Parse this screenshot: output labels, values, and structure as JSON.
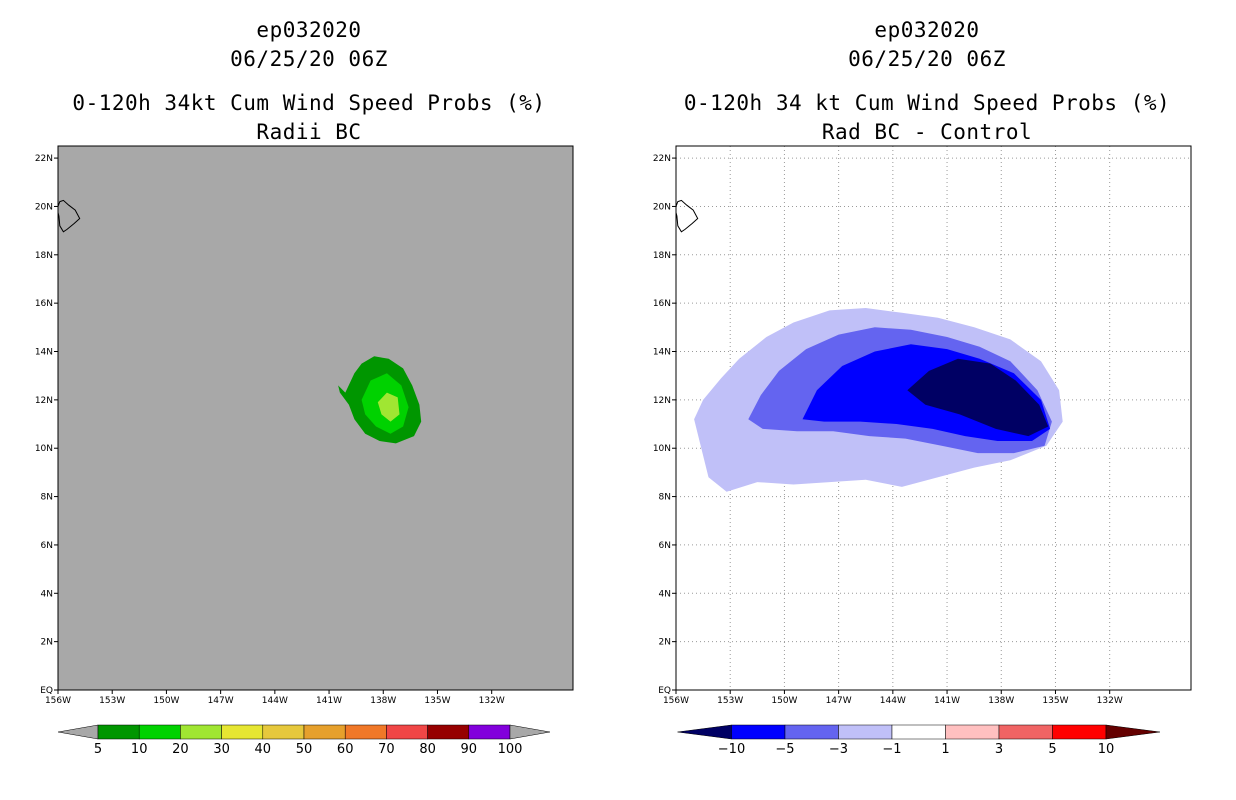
{
  "chart_data": [
    {
      "type": "heatmap",
      "storm_id": "ep032020",
      "datetime": "06/25/20 06Z",
      "title": "0-120h 34kt Cum Wind Speed Probs (%)",
      "subtitle": "Radii BC",
      "x_ticks": [
        "156W",
        "153W",
        "150W",
        "147W",
        "144W",
        "141W",
        "138W",
        "135W",
        "132W"
      ],
      "y_ticks": [
        "EQ",
        "2N",
        "4N",
        "6N",
        "8N",
        "10N",
        "12N",
        "14N",
        "16N",
        "18N",
        "20N",
        "22N"
      ],
      "xlim": [
        -156,
        -127.5
      ],
      "ylim": [
        0,
        22.5
      ],
      "grid": false,
      "background_color": "#a8a8a8",
      "levels": [
        5,
        10,
        20,
        30,
        40,
        50,
        60,
        70,
        80,
        90,
        100
      ],
      "colorbar_labels": [
        "5",
        "10",
        "20",
        "30",
        "40",
        "50",
        "60",
        "70",
        "80",
        "90",
        "100"
      ],
      "colors": [
        "#a8a8a8",
        "#009600",
        "#00d200",
        "#a0e632",
        "#e6e632",
        "#e6c83c",
        "#e6a02c",
        "#f07828",
        "#f04646",
        "#960000",
        "#8200dc",
        "#a8a8a8"
      ],
      "contours": [
        {
          "level": 5,
          "color": "#009600",
          "points": [
            [
              -140.5,
              12.6
            ],
            [
              -140.1,
              12.3
            ],
            [
              -139.6,
              13.1
            ],
            [
              -139.2,
              13.5
            ],
            [
              -138.5,
              13.8
            ],
            [
              -137.7,
              13.7
            ],
            [
              -136.9,
              13.3
            ],
            [
              -136.4,
              12.6
            ],
            [
              -136.0,
              11.8
            ],
            [
              -135.9,
              11.1
            ],
            [
              -136.3,
              10.5
            ],
            [
              -137.3,
              10.2
            ],
            [
              -138.2,
              10.3
            ],
            [
              -139.0,
              10.6
            ],
            [
              -139.6,
              11.2
            ],
            [
              -139.9,
              11.8
            ],
            [
              -140.4,
              12.3
            ]
          ]
        },
        {
          "level": 10,
          "color": "#00d200",
          "points": [
            [
              -139.2,
              12.0
            ],
            [
              -138.7,
              12.8
            ],
            [
              -137.8,
              13.1
            ],
            [
              -137.0,
              12.6
            ],
            [
              -136.6,
              11.7
            ],
            [
              -136.9,
              10.9
            ],
            [
              -137.6,
              10.6
            ],
            [
              -138.4,
              10.9
            ],
            [
              -139.0,
              11.4
            ]
          ]
        },
        {
          "level": 20,
          "color": "#a0e632",
          "points": [
            [
              -138.3,
              11.9
            ],
            [
              -137.8,
              12.3
            ],
            [
              -137.2,
              12.1
            ],
            [
              -137.1,
              11.4
            ],
            [
              -137.6,
              11.1
            ],
            [
              -138.1,
              11.4
            ]
          ]
        }
      ],
      "land_outline": "Hawaii (Big Island)",
      "colorbar_end_arrows": "#a8a8a8"
    },
    {
      "type": "heatmap",
      "storm_id": "ep032020",
      "datetime": "06/25/20 06Z",
      "title": "0-120h 34 kt Cum Wind Speed Probs (%)",
      "subtitle": "Rad BC - Control",
      "x_ticks": [
        "156W",
        "153W",
        "150W",
        "147W",
        "144W",
        "141W",
        "138W",
        "135W",
        "132W"
      ],
      "y_ticks": [
        "EQ",
        "2N",
        "4N",
        "6N",
        "8N",
        "10N",
        "12N",
        "14N",
        "16N",
        "18N",
        "20N",
        "22N"
      ],
      "xlim": [
        -156,
        -127.5
      ],
      "ylim": [
        0,
        22.5
      ],
      "grid": true,
      "background_color": "#ffffff",
      "levels": [
        -10,
        -5,
        -3,
        -1,
        1,
        3,
        5,
        10
      ],
      "colorbar_labels": [
        "-10",
        "-5",
        "-3",
        "-1",
        "1",
        "3",
        "5",
        "10"
      ],
      "colors": [
        "#000064",
        "#0000ff",
        "#6464f0",
        "#c0c0f8",
        "#ffffff",
        "#ffc0c0",
        "#f06464",
        "#ff0000",
        "#640000"
      ],
      "contours": [
        {
          "level": -1,
          "color": "#c0c0f8",
          "points": [
            [
              -155,
              11.2
            ],
            [
              -154.5,
              12.0
            ],
            [
              -153.5,
              12.9
            ],
            [
              -152.5,
              13.7
            ],
            [
              -151.0,
              14.6
            ],
            [
              -149.5,
              15.2
            ],
            [
              -147.5,
              15.7
            ],
            [
              -145.5,
              15.8
            ],
            [
              -143.5,
              15.6
            ],
            [
              -141.5,
              15.4
            ],
            [
              -139.5,
              15.0
            ],
            [
              -137.5,
              14.5
            ],
            [
              -135.8,
              13.6
            ],
            [
              -134.8,
              12.4
            ],
            [
              -134.6,
              11.1
            ],
            [
              -135.5,
              10.1
            ],
            [
              -137.5,
              9.5
            ],
            [
              -139.5,
              9.2
            ],
            [
              -141.5,
              8.8
            ],
            [
              -143.5,
              8.4
            ],
            [
              -145.5,
              8.7
            ],
            [
              -147.5,
              8.6
            ],
            [
              -149.5,
              8.5
            ],
            [
              -151.5,
              8.6
            ],
            [
              -153.2,
              8.2
            ],
            [
              -154.2,
              8.8
            ],
            [
              -154.6,
              10.0
            ]
          ]
        },
        {
          "level": -3,
          "color": "#6464f0",
          "points": [
            [
              -152.0,
              11.2
            ],
            [
              -151.3,
              12.2
            ],
            [
              -150.3,
              13.2
            ],
            [
              -148.8,
              14.1
            ],
            [
              -147.0,
              14.7
            ],
            [
              -145.0,
              15.0
            ],
            [
              -143.0,
              14.9
            ],
            [
              -141.0,
              14.6
            ],
            [
              -139.2,
              14.2
            ],
            [
              -137.5,
              13.6
            ],
            [
              -136.0,
              12.4
            ],
            [
              -135.2,
              11.1
            ],
            [
              -135.6,
              10.1
            ],
            [
              -137.3,
              9.8
            ],
            [
              -139.3,
              9.8
            ],
            [
              -141.3,
              10.1
            ],
            [
              -143.3,
              10.4
            ],
            [
              -145.3,
              10.5
            ],
            [
              -147.3,
              10.7
            ],
            [
              -149.3,
              10.7
            ],
            [
              -151.2,
              10.8
            ]
          ]
        },
        {
          "level": -5,
          "color": "#0000ff",
          "points": [
            [
              -149.0,
              11.2
            ],
            [
              -148.2,
              12.4
            ],
            [
              -146.8,
              13.4
            ],
            [
              -145.0,
              14.0
            ],
            [
              -143.0,
              14.3
            ],
            [
              -141.0,
              14.1
            ],
            [
              -139.2,
              13.7
            ],
            [
              -137.3,
              13.1
            ],
            [
              -135.8,
              12.0
            ],
            [
              -135.3,
              10.8
            ],
            [
              -136.3,
              10.3
            ],
            [
              -138.2,
              10.3
            ],
            [
              -140.0,
              10.5
            ],
            [
              -141.8,
              10.8
            ],
            [
              -143.8,
              11.0
            ],
            [
              -145.8,
              11.1
            ],
            [
              -147.8,
              11.1
            ]
          ]
        },
        {
          "level": -10,
          "color": "#000064",
          "points": [
            [
              -143.2,
              12.4
            ],
            [
              -142.0,
              13.2
            ],
            [
              -140.4,
              13.7
            ],
            [
              -138.6,
              13.5
            ],
            [
              -137.2,
              12.8
            ],
            [
              -135.9,
              11.8
            ],
            [
              -135.4,
              10.9
            ],
            [
              -136.5,
              10.5
            ],
            [
              -138.3,
              10.8
            ],
            [
              -140.3,
              11.4
            ],
            [
              -142.2,
              11.8
            ]
          ]
        }
      ],
      "land_outline": "Hawaii (Big Island)",
      "colorbar_end_arrows": [
        "#000064",
        "#640000"
      ]
    }
  ]
}
